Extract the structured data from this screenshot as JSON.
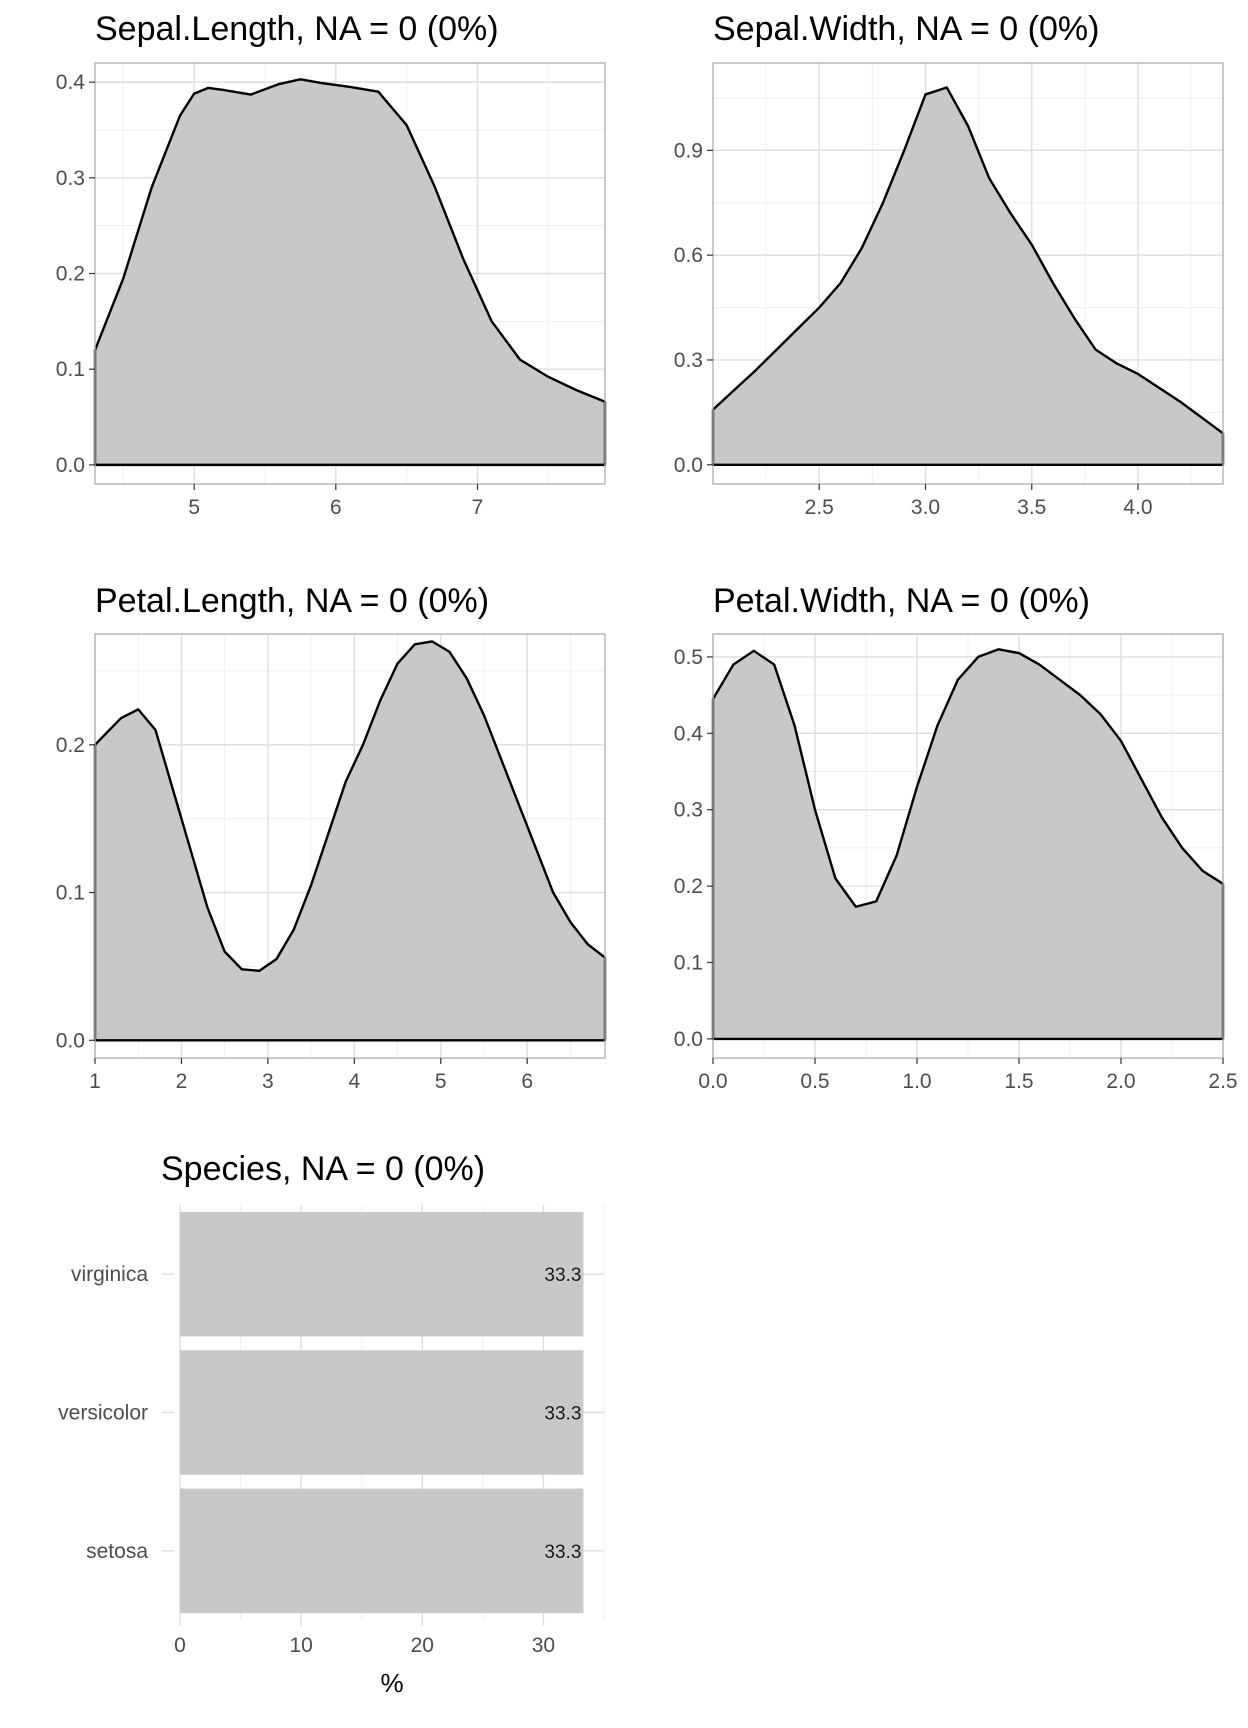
{
  "chart_data": [
    {
      "type": "area",
      "title": "Sepal.Length, NA = 0 (0%)",
      "xlabel": "",
      "ylabel": "",
      "xlim": [
        4.3,
        7.9
      ],
      "ylim": [
        -0.02,
        0.42
      ],
      "x_ticks": [
        5,
        6,
        7
      ],
      "x_tick_labels": [
        "5",
        "6",
        "7"
      ],
      "y_ticks": [
        0.0,
        0.1,
        0.2,
        0.3,
        0.4
      ],
      "y_tick_labels": [
        "0.0",
        "0.1",
        "0.2",
        "0.3",
        "0.4"
      ],
      "grid": true,
      "x": [
        4.3,
        4.5,
        4.7,
        4.9,
        5.0,
        5.1,
        5.2,
        5.4,
        5.6,
        5.75,
        5.9,
        6.1,
        6.3,
        6.5,
        6.7,
        6.9,
        7.1,
        7.3,
        7.5,
        7.7,
        7.9
      ],
      "y": [
        0.12,
        0.195,
        0.29,
        0.365,
        0.388,
        0.394,
        0.392,
        0.387,
        0.398,
        0.403,
        0.399,
        0.395,
        0.39,
        0.355,
        0.29,
        0.215,
        0.15,
        0.11,
        0.092,
        0.078,
        0.066
      ]
    },
    {
      "type": "area",
      "title": "Sepal.Width, NA = 0 (0%)",
      "xlabel": "",
      "ylabel": "",
      "xlim": [
        2.0,
        4.4
      ],
      "ylim": [
        -0.055,
        1.15
      ],
      "x_ticks": [
        2.5,
        3.0,
        3.5,
        4.0
      ],
      "x_tick_labels": [
        "2.5",
        "3.0",
        "3.5",
        "4.0"
      ],
      "y_ticks": [
        0.0,
        0.3,
        0.6,
        0.9
      ],
      "y_tick_labels": [
        "0.0",
        "0.3",
        "0.6",
        "0.9"
      ],
      "grid": true,
      "x": [
        2.0,
        2.2,
        2.4,
        2.5,
        2.6,
        2.7,
        2.8,
        2.9,
        3.0,
        3.1,
        3.2,
        3.3,
        3.4,
        3.5,
        3.6,
        3.7,
        3.8,
        3.9,
        4.0,
        4.2,
        4.4
      ],
      "y": [
        0.158,
        0.27,
        0.39,
        0.45,
        0.52,
        0.62,
        0.75,
        0.9,
        1.06,
        1.08,
        0.97,
        0.82,
        0.72,
        0.63,
        0.52,
        0.42,
        0.33,
        0.29,
        0.26,
        0.18,
        0.09
      ]
    },
    {
      "type": "area",
      "title": "Petal.Length, NA = 0 (0%)",
      "xlabel": "",
      "ylabel": "",
      "xlim": [
        1.0,
        6.9
      ],
      "ylim": [
        -0.012,
        0.275
      ],
      "x_ticks": [
        1,
        2,
        3,
        4,
        5,
        6
      ],
      "x_tick_labels": [
        "1",
        "2",
        "3",
        "4",
        "5",
        "6"
      ],
      "y_ticks": [
        0.0,
        0.1,
        0.2
      ],
      "y_tick_labels": [
        "0.0",
        "0.1",
        "0.2"
      ],
      "grid": true,
      "x": [
        1.0,
        1.3,
        1.5,
        1.7,
        1.9,
        2.1,
        2.3,
        2.5,
        2.7,
        2.9,
        3.1,
        3.3,
        3.5,
        3.7,
        3.9,
        4.1,
        4.3,
        4.5,
        4.7,
        4.9,
        5.1,
        5.3,
        5.5,
        5.7,
        5.9,
        6.1,
        6.3,
        6.5,
        6.7,
        6.9
      ],
      "y": [
        0.2,
        0.218,
        0.224,
        0.21,
        0.17,
        0.13,
        0.09,
        0.06,
        0.048,
        0.047,
        0.055,
        0.075,
        0.105,
        0.14,
        0.175,
        0.2,
        0.23,
        0.255,
        0.268,
        0.27,
        0.263,
        0.245,
        0.22,
        0.19,
        0.16,
        0.13,
        0.1,
        0.08,
        0.065,
        0.056
      ]
    },
    {
      "type": "area",
      "title": "Petal.Width, NA = 0 (0%)",
      "xlabel": "",
      "ylabel": "",
      "xlim": [
        0.0,
        2.5
      ],
      "ylim": [
        -0.025,
        0.53
      ],
      "x_ticks": [
        0.0,
        0.5,
        1.0,
        1.5,
        2.0,
        2.5
      ],
      "x_tick_labels": [
        "0.0",
        "0.5",
        "1.0",
        "1.5",
        "2.0",
        "2.5"
      ],
      "y_ticks": [
        0.0,
        0.1,
        0.2,
        0.3,
        0.4,
        0.5
      ],
      "y_tick_labels": [
        "0.0",
        "0.1",
        "0.2",
        "0.3",
        "0.4",
        "0.5"
      ],
      "grid": true,
      "x": [
        0.0,
        0.1,
        0.2,
        0.3,
        0.4,
        0.5,
        0.6,
        0.7,
        0.8,
        0.9,
        1.0,
        1.1,
        1.2,
        1.3,
        1.4,
        1.5,
        1.6,
        1.7,
        1.8,
        1.9,
        2.0,
        2.1,
        2.2,
        2.3,
        2.4,
        2.5
      ],
      "y": [
        0.445,
        0.49,
        0.508,
        0.49,
        0.41,
        0.3,
        0.21,
        0.173,
        0.18,
        0.24,
        0.33,
        0.41,
        0.47,
        0.5,
        0.51,
        0.505,
        0.49,
        0.47,
        0.45,
        0.425,
        0.39,
        0.34,
        0.29,
        0.25,
        0.22,
        0.203
      ]
    },
    {
      "type": "bar",
      "orientation": "horizontal",
      "title": "Species, NA = 0 (0%)",
      "xlabel": "%",
      "ylabel": "",
      "xlim": [
        0,
        35
      ],
      "x_ticks": [
        0,
        10,
        20,
        30
      ],
      "x_tick_labels": [
        "0",
        "10",
        "20",
        "30"
      ],
      "grid": true,
      "categories": [
        "virginica",
        "versicolor",
        "setosa"
      ],
      "values": [
        33.3,
        33.3,
        33.3
      ],
      "value_labels": [
        "33.3",
        "33.3",
        "33.3"
      ]
    }
  ],
  "colors": {
    "fill": "#c8c8c8",
    "line": "#000000",
    "grid_major": "#dedede",
    "grid_minor": "#efefef",
    "panel_border": "#b3b3b3",
    "tick_text": "#4d4d4d"
  }
}
